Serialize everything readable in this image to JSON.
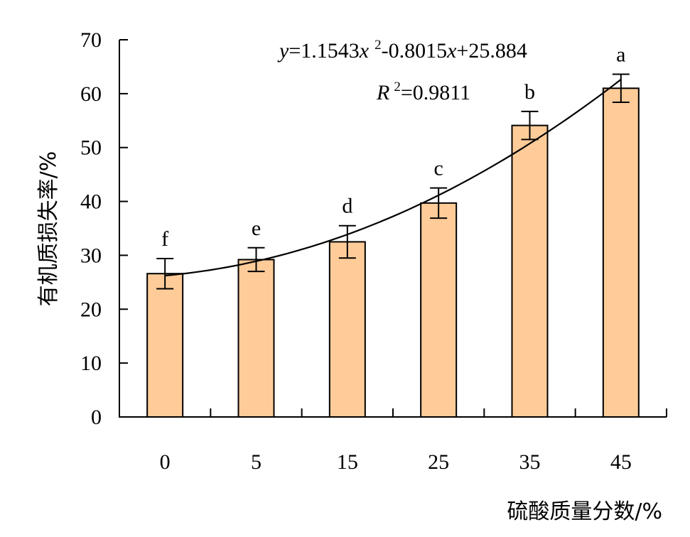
{
  "chart_data": {
    "type": "bar",
    "categories": [
      "0",
      "5",
      "15",
      "25",
      "35",
      "45"
    ],
    "values": [
      26.6,
      29.2,
      32.5,
      39.7,
      54.1,
      61.0
    ],
    "error": [
      2.8,
      2.2,
      3.0,
      2.8,
      2.6,
      2.6
    ],
    "significance_labels": [
      "f",
      "e",
      "d",
      "c",
      "b",
      "a"
    ],
    "xlabel": "硫酸质量分数/%",
    "ylabel": "有机质损失率/%",
    "ylim": [
      0,
      70
    ],
    "yticks": [
      "0",
      "10",
      "20",
      "30",
      "40",
      "50",
      "60",
      "70"
    ],
    "bar_color": "#FFCC99",
    "trendline": {
      "type": "polynomial",
      "coefficients": [
        1.1543,
        -0.8015,
        25.884
      ],
      "equation": {
        "y": "y",
        "eq1": "=1.1543",
        "x": "x",
        "exp": "2",
        "mid": "-0.8015",
        "x2": "x",
        "tail": "+25.884"
      },
      "r2": {
        "R": "R",
        "exp": "2",
        "value": "=0.9811"
      }
    },
    "grid": false,
    "legend": "none"
  }
}
